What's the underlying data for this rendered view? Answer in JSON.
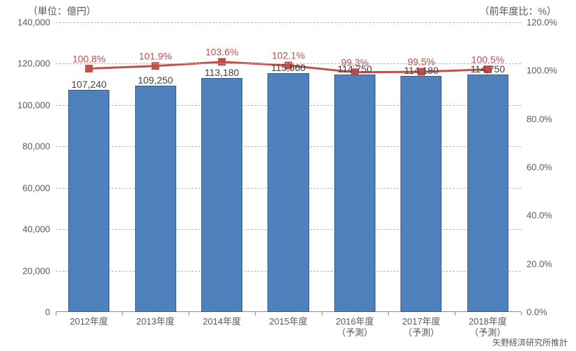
{
  "chart": {
    "type": "bar+line",
    "left_axis_title": "（単位：億円）",
    "right_axis_title": "（前年度比：%）",
    "credit": "矢野経済研究所推計",
    "background_color": "#ffffff",
    "grid_color": "#b7b7b7",
    "grid_dash": true,
    "text_color": "#595959",
    "bar_color": "#4f81bd",
    "bar_border_color": "#3a5f8a",
    "line_color": "#c0504d",
    "marker_fill": "#c0504d",
    "marker_stroke": "#c0504d",
    "marker_size": 10,
    "line_width": 3,
    "bar_width_ratio": 0.62,
    "label_fontsize": 14,
    "tick_fontsize": 13,
    "title_fontsize": 14,
    "y_left": {
      "min": 0,
      "max": 140000,
      "step": 20000
    },
    "y_right": {
      "min": 0.0,
      "max": 120.0,
      "step": 20.0,
      "suffix": "%",
      "decimals": 1
    },
    "categories": [
      "2012年度",
      "2013年度",
      "2014年度",
      "2015年度",
      "2016年度\n（予測）",
      "2017年度\n（予測）",
      "2018年度\n（予測）"
    ],
    "bar_values": [
      107240,
      109250,
      113180,
      115560,
      114750,
      114180,
      114750
    ],
    "bar_value_labels": [
      "107,240",
      "109,250",
      "113,180",
      "115,560",
      "114,750",
      "114,180",
      "114,750"
    ],
    "line_values": [
      100.8,
      101.9,
      103.6,
      102.1,
      99.3,
      99.5,
      100.5
    ],
    "line_value_labels": [
      "100.8%",
      "101.9%",
      "103.6%",
      "102.1%",
      "99.3%",
      "99.5%",
      "100.5%"
    ]
  }
}
